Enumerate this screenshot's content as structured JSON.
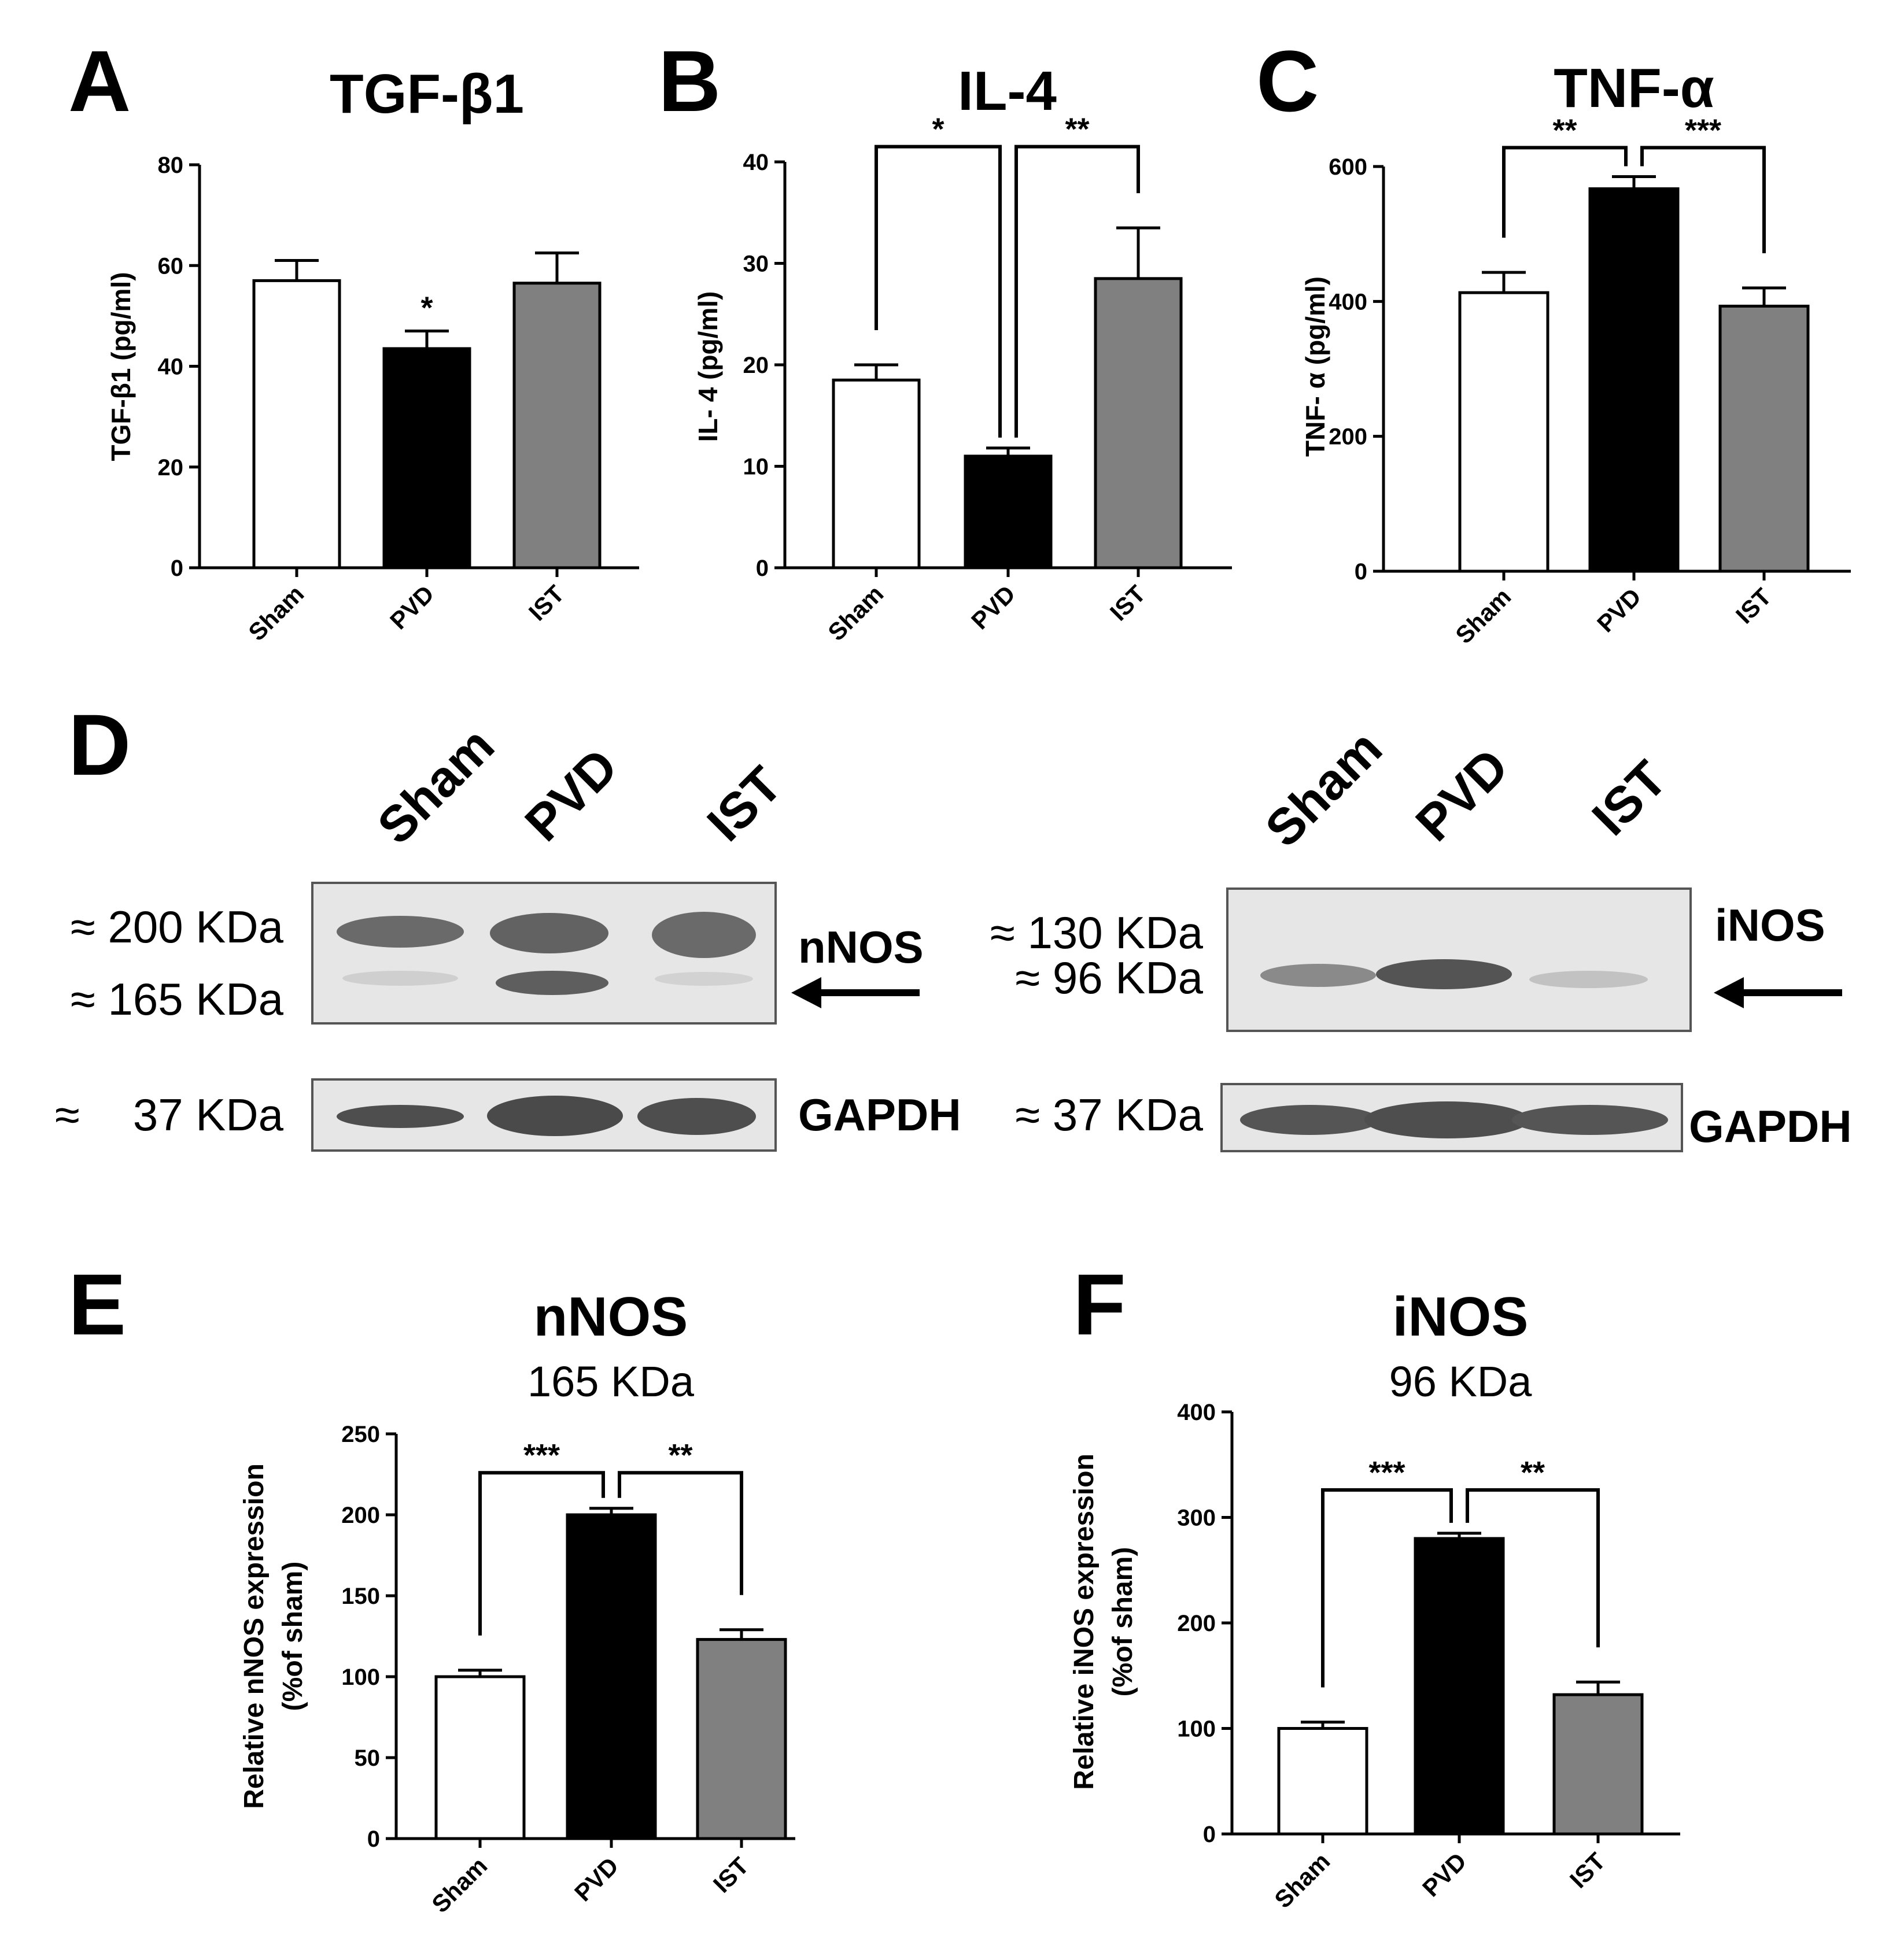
{
  "panels": {
    "A": "A",
    "B": "B",
    "C": "C",
    "D": "D",
    "E": "E",
    "F": "F"
  },
  "colors": {
    "Sham": "#ffffff",
    "PVD": "#000000",
    "IST": "#808080"
  },
  "chart_data": [
    {
      "id": "A",
      "type": "bar",
      "title": "TGF-β1",
      "subtitle": "",
      "ylabel": "TGF-β1 (pg/ml)",
      "categories": [
        "Sham",
        "PVD",
        "IST"
      ],
      "values": [
        57,
        43.5,
        56.5
      ],
      "errors": [
        4,
        3.5,
        6
      ],
      "ylim": [
        0,
        80
      ],
      "yticks": [
        0,
        20,
        40,
        60,
        80
      ],
      "bar_marks": [
        {
          "index": 1,
          "text": "*"
        }
      ],
      "brackets": []
    },
    {
      "id": "B",
      "type": "bar",
      "title": "IL-4",
      "subtitle": "",
      "ylabel": "IL- 4 (pg/ml)",
      "categories": [
        "Sham",
        "PVD",
        "IST"
      ],
      "values": [
        18.5,
        11,
        28.5
      ],
      "errors": [
        1.5,
        0.8,
        5
      ],
      "ylim": [
        0,
        40
      ],
      "yticks": [
        0,
        10,
        20,
        30,
        40
      ],
      "bar_marks": [],
      "brackets": [
        {
          "from": 0,
          "to": 1,
          "y": 41.5,
          "text": "*"
        },
        {
          "from": 1,
          "to": 2,
          "y": 41.5,
          "text": "**"
        }
      ]
    },
    {
      "id": "C",
      "type": "bar",
      "title": "TNF-α",
      "subtitle": "",
      "ylabel": "TNF- α (pg/ml)",
      "categories": [
        "Sham",
        "PVD",
        "IST"
      ],
      "values": [
        413,
        567,
        393
      ],
      "errors": [
        30,
        18,
        27
      ],
      "ylim": [
        0,
        600
      ],
      "yticks": [
        0,
        200,
        400,
        600
      ],
      "bar_marks": [],
      "brackets": [
        {
          "from": 0,
          "to": 1,
          "y": 628,
          "text": "**"
        },
        {
          "from": 1,
          "to": 2,
          "y": 628,
          "text": "***"
        }
      ]
    },
    {
      "id": "E",
      "type": "bar",
      "title": "nNOS",
      "subtitle": "165 KDa",
      "ylabel": [
        "Relative nNOS expression",
        "(%of sham)"
      ],
      "categories": [
        "Sham",
        "PVD",
        "IST"
      ],
      "values": [
        100,
        200,
        123
      ],
      "errors": [
        4,
        4,
        6
      ],
      "ylim": [
        0,
        250
      ],
      "yticks": [
        0,
        50,
        100,
        150,
        200,
        250
      ],
      "bar_marks": [],
      "brackets": [
        {
          "from": 0,
          "to": 1,
          "y": 226,
          "text": "***"
        },
        {
          "from": 1,
          "to": 2,
          "y": 226,
          "text": "**"
        }
      ]
    },
    {
      "id": "F",
      "type": "bar",
      "title": "iNOS",
      "subtitle": "96 KDa",
      "ylabel": [
        "Relative iNOS expression",
        "(%of sham)"
      ],
      "categories": [
        "Sham",
        "PVD",
        "IST"
      ],
      "values": [
        100,
        280,
        132
      ],
      "errors": [
        6,
        5,
        12
      ],
      "ylim": [
        0,
        400
      ],
      "yticks": [
        0,
        100,
        200,
        300,
        400
      ],
      "bar_marks": [],
      "brackets": [
        {
          "from": 0,
          "to": 1,
          "y": 326,
          "text": "***"
        },
        {
          "from": 1,
          "to": 2,
          "y": 326,
          "text": "**"
        }
      ]
    }
  ],
  "blots": {
    "lanes": [
      "Sham",
      "PVD",
      "IST"
    ],
    "left": {
      "target": "nNOS",
      "marker_upper": "≈ 200 KDa",
      "marker_lower": "≈ 165 KDa",
      "control": "GAPDH",
      "control_marker_approx": "≈",
      "control_marker_value": "37 KDa"
    },
    "right": {
      "target": "iNOS",
      "marker_upper": "≈ 130 KDa",
      "marker_lower": "≈ 96 KDa",
      "control": "GAPDH",
      "control_marker": "≈ 37 KDa"
    }
  }
}
